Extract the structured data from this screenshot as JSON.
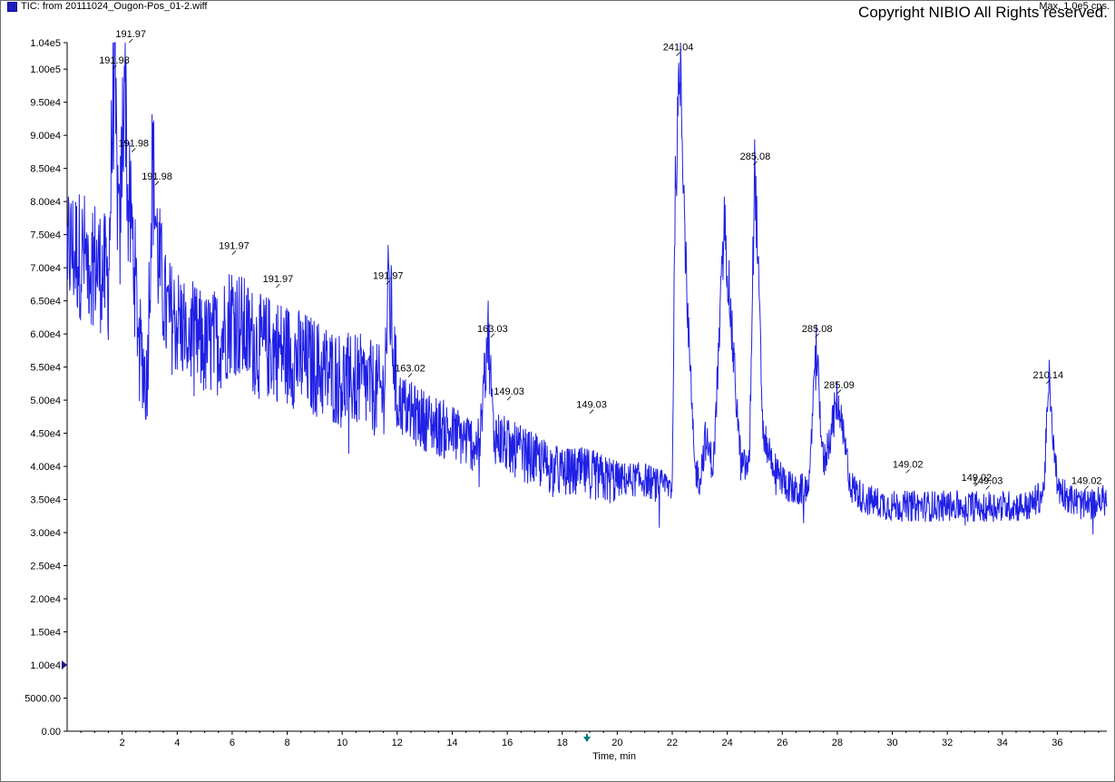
{
  "legend": {
    "text": "TIC: from 20111024_Ougon-Pos_01-2.wiff"
  },
  "max_label": "Max. 1.0e5 cps.",
  "copyright": "Copyright NIBIO All Rights reserved.",
  "colors": {
    "trace": "#1f1fe6",
    "axis": "#000000",
    "marker": "#1a1a8c",
    "arrow": "#0a7a7a"
  },
  "chart_data": {
    "type": "line",
    "xlabel": "Time, min",
    "ylabel": "",
    "xlim": [
      0,
      37.8
    ],
    "ylim": [
      0,
      104000
    ],
    "x_ticks": [
      2,
      4,
      6,
      8,
      10,
      12,
      14,
      16,
      18,
      20,
      22,
      24,
      26,
      28,
      30,
      32,
      34,
      36
    ],
    "x_tick_labels": [
      "2",
      "4",
      "6",
      "8",
      "10",
      "12",
      "14",
      "16",
      "18",
      "20",
      "22",
      "24",
      "26",
      "28",
      "30",
      "32",
      "34",
      "36"
    ],
    "y_ticks": [
      0,
      5000,
      10000,
      15000,
      20000,
      25000,
      30000,
      35000,
      40000,
      45000,
      50000,
      55000,
      60000,
      65000,
      70000,
      75000,
      80000,
      85000,
      90000,
      95000,
      100000,
      104000
    ],
    "y_tick_labels": [
      "0.00",
      "5000.00",
      "1.00e4",
      "1.50e4",
      "2.00e4",
      "2.50e4",
      "3.00e4",
      "3.50e4",
      "4.00e4",
      "4.50e4",
      "5.00e4",
      "5.50e4",
      "6.00e4",
      "6.50e4",
      "7.00e4",
      "7.50e4",
      "8.00e4",
      "8.50e4",
      "9.00e4",
      "9.50e4",
      "1.00e5",
      "1.04e5"
    ],
    "grid": false,
    "series": [
      {
        "x": [
          0.0,
          0.5,
          1.0,
          1.5,
          1.7,
          1.9,
          2.1,
          2.2,
          2.35,
          2.6,
          2.9,
          3.1,
          3.3,
          3.6,
          4.0,
          4.5,
          5.0,
          5.5,
          6.0,
          6.5,
          7.0,
          7.5,
          8.0,
          8.5,
          9.0,
          9.5,
          10.0,
          10.5,
          11.0,
          11.5,
          11.7,
          12.0,
          12.5,
          13.0,
          13.5,
          14.0,
          14.5,
          15.0,
          15.3,
          15.5,
          16.0,
          16.5,
          17.0,
          17.5,
          18.0,
          18.5,
          19.0,
          19.5,
          20.0,
          20.5,
          21.0,
          21.5,
          22.0,
          22.1,
          22.3,
          22.5,
          22.8,
          23.0,
          23.2,
          23.5,
          23.9,
          24.2,
          24.5,
          24.8,
          25.0,
          25.3,
          25.7,
          26.0,
          26.5,
          27.0,
          27.2,
          27.5,
          28.0,
          28.5,
          29.0,
          30.0,
          31.0,
          32.0,
          33.0,
          34.0,
          35.0,
          35.5,
          35.7,
          36.0,
          36.5,
          37.0,
          37.8
        ],
        "y": [
          73000,
          72000,
          71000,
          68000,
          100000,
          72000,
          104000,
          80000,
          76000,
          60000,
          52000,
          86000,
          72000,
          63000,
          62000,
          60000,
          58000,
          59000,
          63000,
          60000,
          58000,
          58000,
          57000,
          56000,
          55000,
          54000,
          53000,
          53000,
          52000,
          51000,
          67000,
          50000,
          48000,
          47000,
          46000,
          45000,
          44000,
          43000,
          61000,
          45000,
          43000,
          42000,
          41000,
          40000,
          39000,
          39000,
          39000,
          38000,
          38000,
          38000,
          38000,
          37000,
          37000,
          80000,
          102000,
          70000,
          40000,
          38000,
          44000,
          40000,
          77000,
          58000,
          40000,
          40000,
          86000,
          45000,
          40000,
          38000,
          36000,
          37000,
          60000,
          40000,
          50000,
          37000,
          35000,
          34000,
          34000,
          34000,
          34000,
          34000,
          34000,
          36000,
          53000,
          37000,
          35000,
          34000,
          35000
        ]
      }
    ],
    "annotations": [
      {
        "x": 1.65,
        "y": 100000,
        "text": "191.98"
      },
      {
        "x": 2.25,
        "y": 104000,
        "text": "191.97"
      },
      {
        "x": 2.35,
        "y": 87500,
        "text": "191.98"
      },
      {
        "x": 3.2,
        "y": 82500,
        "text": "191.98"
      },
      {
        "x": 6.0,
        "y": 72000,
        "text": "191.97"
      },
      {
        "x": 7.6,
        "y": 67000,
        "text": "191.97"
      },
      {
        "x": 11.6,
        "y": 67500,
        "text": "191.97"
      },
      {
        "x": 12.4,
        "y": 53500,
        "text": "163.02"
      },
      {
        "x": 15.4,
        "y": 59500,
        "text": "163.03"
      },
      {
        "x": 16.0,
        "y": 50000,
        "text": "149.03"
      },
      {
        "x": 19.0,
        "y": 48000,
        "text": "149.03"
      },
      {
        "x": 22.15,
        "y": 102000,
        "text": "241.04"
      },
      {
        "x": 24.95,
        "y": 85500,
        "text": "285.08"
      },
      {
        "x": 27.2,
        "y": 59500,
        "text": "285.08"
      },
      {
        "x": 28.0,
        "y": 51000,
        "text": "285.09"
      },
      {
        "x": 30.5,
        "y": 39000,
        "text": "149.02"
      },
      {
        "x": 33.0,
        "y": 37000,
        "text": "149.02"
      },
      {
        "x": 33.4,
        "y": 36500,
        "text": "149.03"
      },
      {
        "x": 35.6,
        "y": 52500,
        "text": "210.14"
      },
      {
        "x": 37.0,
        "y": 36500,
        "text": "149.02"
      }
    ],
    "markers": {
      "y_marker": 10000,
      "x_marker": 18.9
    }
  }
}
